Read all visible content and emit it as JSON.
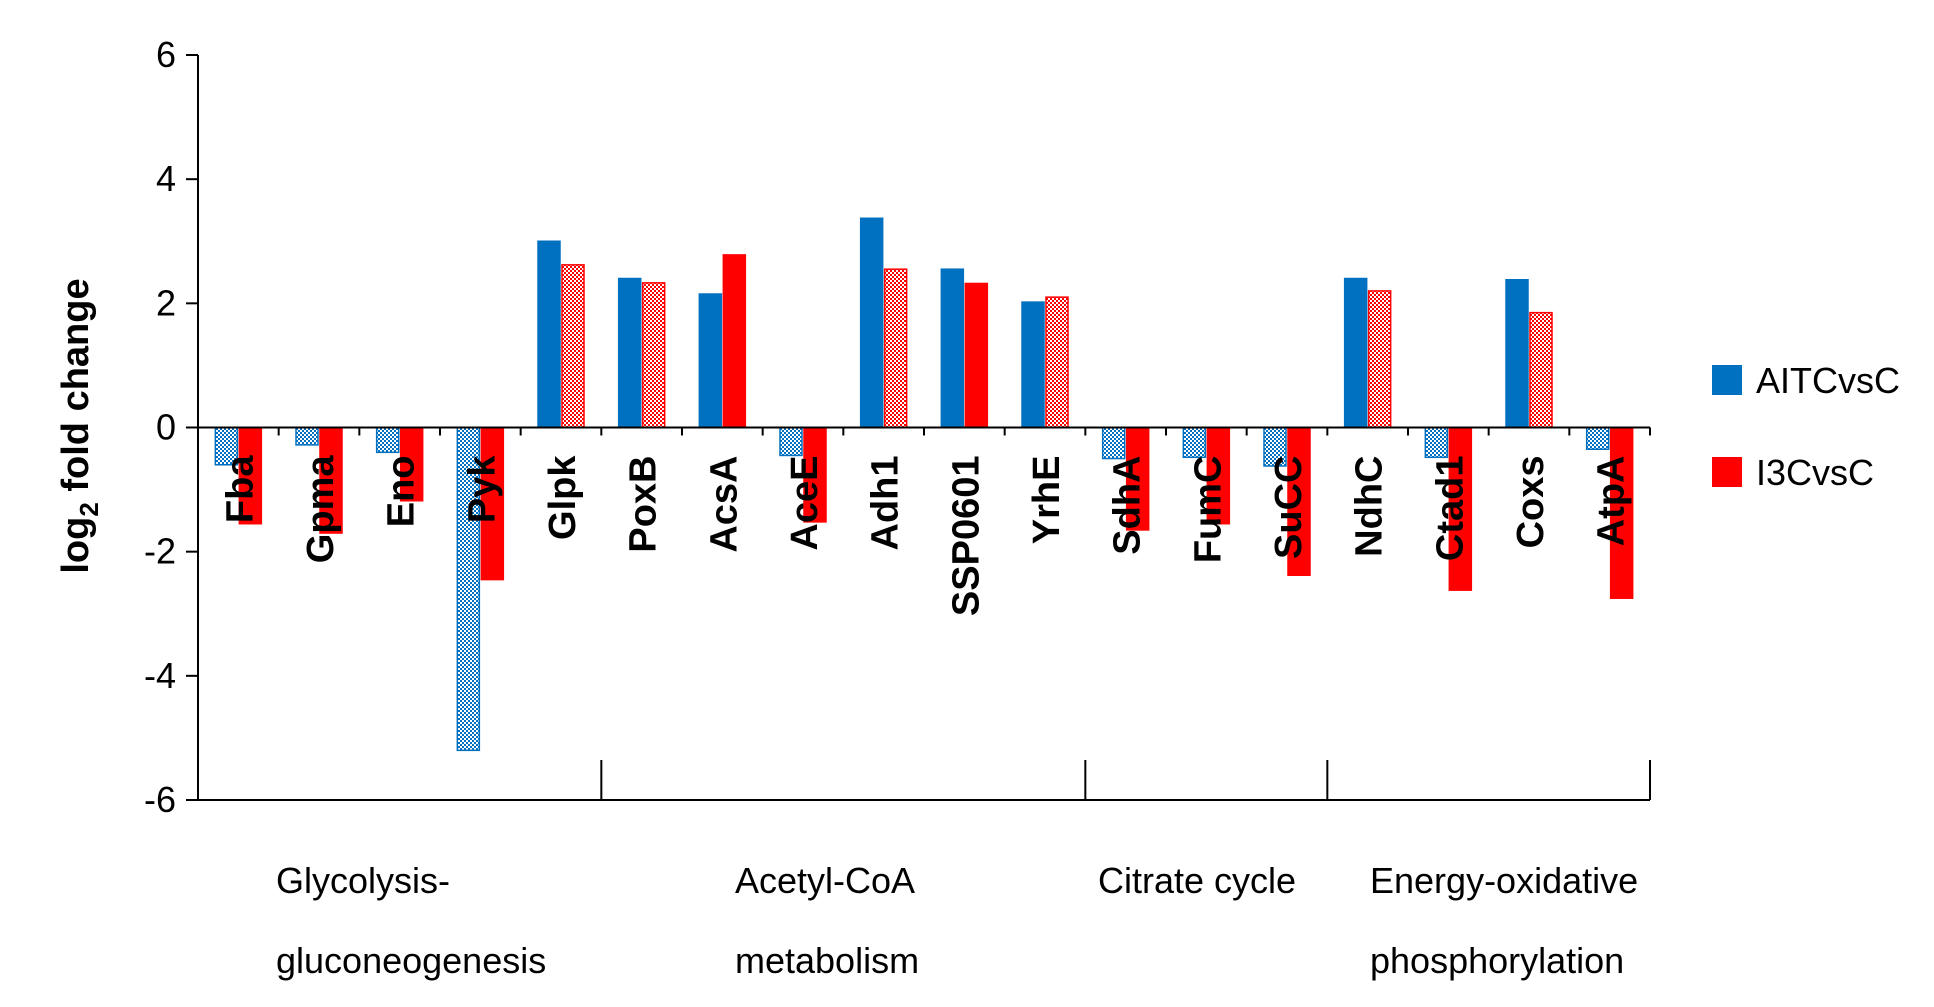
{
  "chart_data": {
    "type": "bar",
    "ylabel": "log",
    "ylabel_sub": "2",
    "ylabel_rest": " fold change",
    "ylim": [
      -6,
      6
    ],
    "yticks": [
      -6,
      -4,
      -2,
      0,
      2,
      4,
      6
    ],
    "categories": [
      "Fba",
      "Gpma",
      "Eno",
      "Pyk",
      "Glpk",
      "PoxB",
      "AcsA",
      "AceE",
      "Adh1",
      "SSP0601",
      "YrhE",
      "SdhA",
      "FumC",
      "SuCC",
      "NdhC",
      "Ctad1",
      "Coxs",
      "AtpA"
    ],
    "series": [
      {
        "name": "AITCvsC",
        "color": "#0070C0",
        "values": [
          -0.6,
          -0.28,
          -0.4,
          -5.2,
          3.0,
          2.4,
          2.15,
          -0.45,
          3.37,
          2.55,
          2.02,
          -0.5,
          -0.48,
          -0.62,
          2.4,
          -0.48,
          2.38,
          -0.35
        ],
        "hatched": [
          true,
          true,
          true,
          true,
          false,
          false,
          false,
          true,
          false,
          false,
          false,
          true,
          true,
          true,
          false,
          true,
          false,
          true
        ]
      },
      {
        "name": "I3CvsC",
        "color": "#FF0000",
        "values": [
          -1.55,
          -1.7,
          -1.18,
          -2.45,
          2.62,
          2.33,
          2.78,
          -1.52,
          2.55,
          2.32,
          2.1,
          -1.65,
          -1.55,
          -2.38,
          2.2,
          -2.62,
          1.85,
          -2.75
        ],
        "hatched": [
          false,
          false,
          false,
          false,
          true,
          true,
          false,
          false,
          true,
          false,
          true,
          false,
          false,
          false,
          true,
          false,
          true,
          false
        ]
      }
    ],
    "groups": [
      {
        "lines": [
          "Glycolysis-",
          "gluconeogenesis"
        ],
        "from": 0,
        "to": 4
      },
      {
        "lines": [
          "Acetyl-CoA",
          "metabolism"
        ],
        "from": 5,
        "to": 10
      },
      {
        "lines": [
          "Citrate cycle"
        ],
        "from": 11,
        "to": 13
      },
      {
        "lines": [
          "Energy-oxidative",
          "phosphorylation"
        ],
        "from": 14,
        "to": 17
      }
    ]
  }
}
